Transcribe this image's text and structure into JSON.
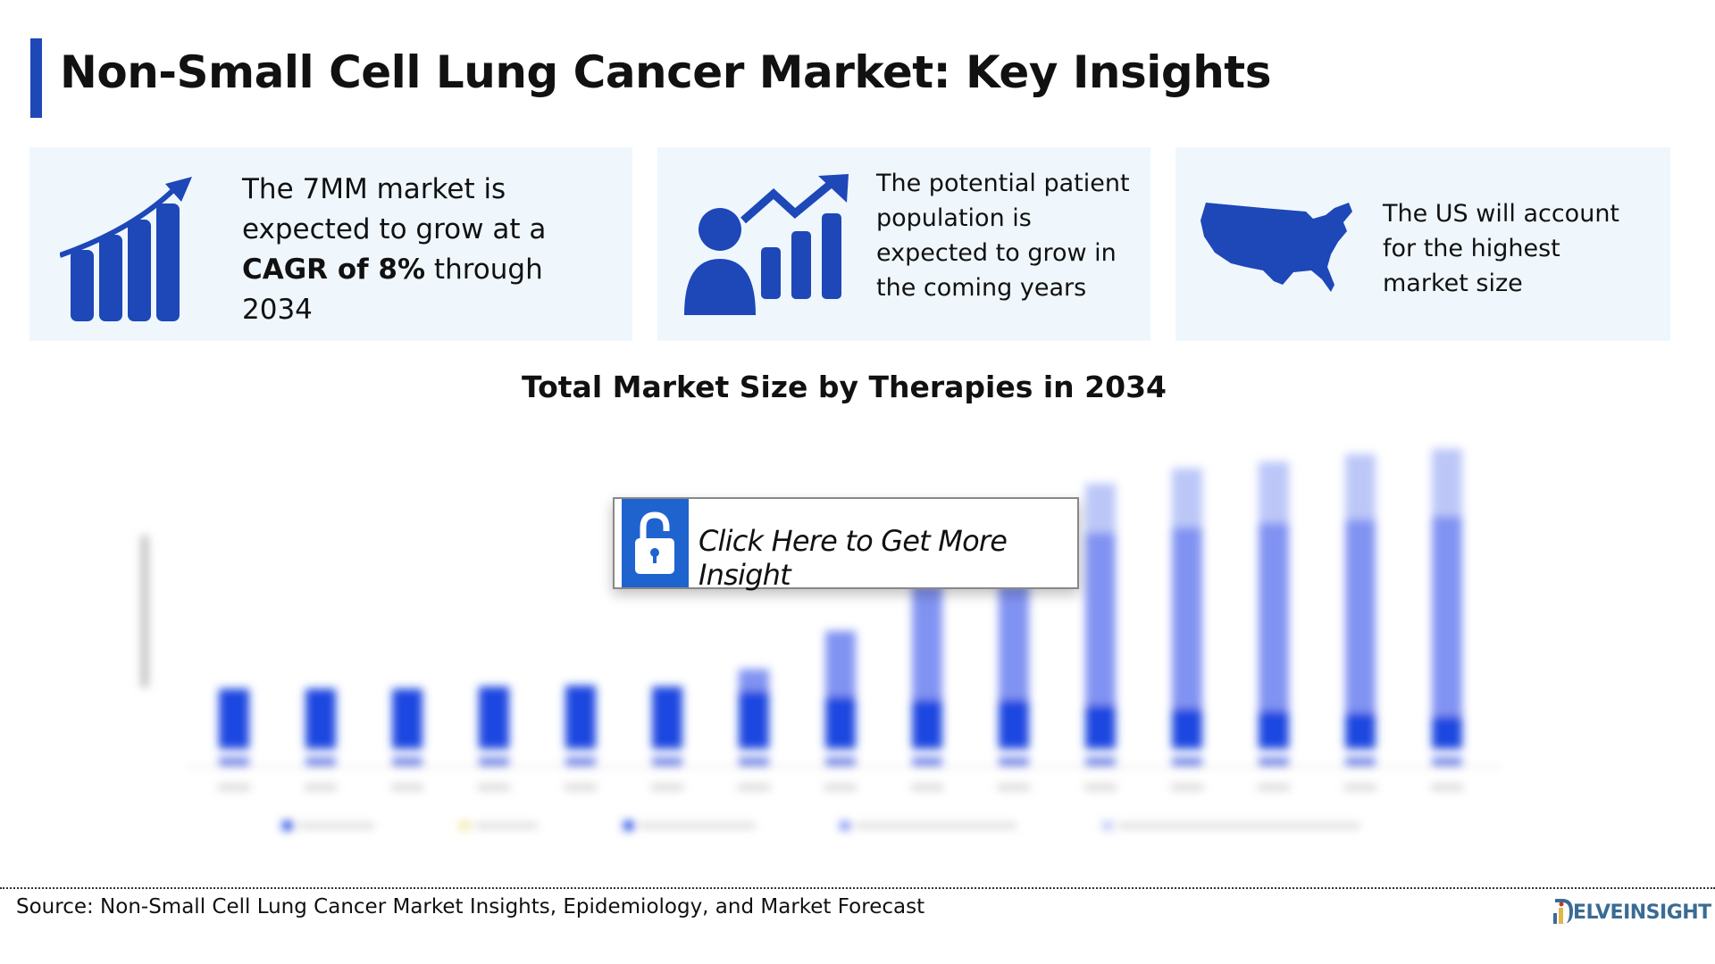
{
  "header": {
    "title": "Non-Small Cell Lung Cancer Market: Key Insights"
  },
  "cards": [
    {
      "icon": "growth-bar-chart-icon",
      "lines": [
        "The 7MM market is",
        "expected to grow at a"
      ],
      "bold": "CAGR of 8%",
      "after_bold": " through",
      "last": "2034"
    },
    {
      "icon": "patient-growth-icon",
      "lines": [
        "The potential patient",
        "population is",
        "expected to grow in",
        "the coming years"
      ]
    },
    {
      "icon": "us-map-icon",
      "lines": [
        "The US will account",
        "for the highest",
        "market size"
      ]
    }
  ],
  "chart": {
    "title": "Total Market Size by Therapies in 2034",
    "colors": {
      "dark": "#1e47e0",
      "mid": "#8193f2",
      "light": "#bcc7f8",
      "base": "#5d78e8"
    },
    "chart_data": {
      "type": "bar",
      "note": "blurred stacked bars; values estimated in relative units",
      "series": [
        {
          "name": "segment-1",
          "values": [
            55,
            55,
            55,
            57,
            58,
            57,
            53,
            48,
            45,
            45,
            40,
            37,
            35,
            33,
            30
          ]
        },
        {
          "name": "segment-2",
          "values": [
            0,
            0,
            0,
            0,
            0,
            0,
            20,
            60,
            105,
            105,
            158,
            166,
            172,
            177,
            183
          ]
        },
        {
          "name": "segment-3",
          "values": [
            0,
            0,
            0,
            0,
            0,
            0,
            0,
            0,
            0,
            0,
            45,
            54,
            56,
            60,
            62
          ]
        }
      ],
      "ylim": [
        0,
        300
      ]
    }
  },
  "cta": {
    "label": "Click Here to Get More Insight",
    "icon": "unlock-icon"
  },
  "footer": {
    "source": "Source: Non-Small Cell Lung Cancer Market Insights, Epidemiology, and Market Forecast",
    "logo": "DELVEINSIGHT"
  }
}
